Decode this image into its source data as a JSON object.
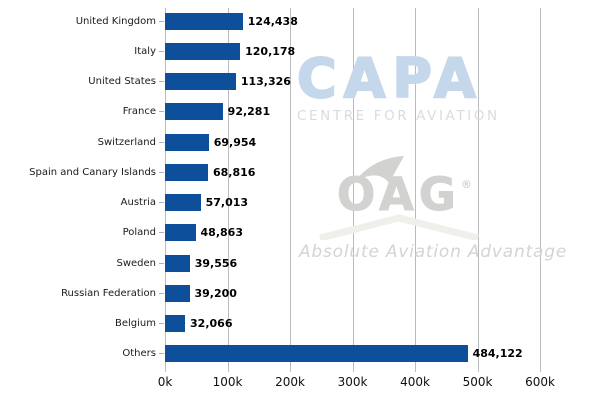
{
  "chart_data": {
    "type": "bar",
    "orientation": "horizontal",
    "categories": [
      "United Kingdom",
      "Italy",
      "United States",
      "France",
      "Switzerland",
      "Spain and Canary Islands",
      "Austria",
      "Poland",
      "Sweden",
      "Russian Federation",
      "Belgium",
      "Others"
    ],
    "values": [
      124438,
      120178,
      113326,
      92281,
      69954,
      68816,
      57013,
      48863,
      39556,
      39200,
      32066,
      484122
    ],
    "value_labels": [
      "124,438",
      "120,178",
      "113,326",
      "92,281",
      "69,954",
      "68,816",
      "57,013",
      "48,863",
      "39,556",
      "39,200",
      "32,066",
      "484,122"
    ],
    "title": "",
    "xlabel": "",
    "ylabel": "",
    "x_ticks": [
      "0k",
      "100k",
      "200k",
      "300k",
      "400k",
      "500k",
      "600k"
    ],
    "xlim": [
      0,
      600000
    ],
    "grid": "vertical",
    "legend": "none",
    "bar_color": "#0d4f9b",
    "gridline_color": "#b9bcbf"
  },
  "watermarks": {
    "capa": {
      "logo_text": "CAPA",
      "subtitle": "CENTRE FOR AVIATION",
      "logo_color": "#c5d7eb",
      "subtitle_color": "#d8dce1"
    },
    "oag": {
      "logo_text": "OAG",
      "registered_mark": "®",
      "tagline": "Absolute Aviation Advantage",
      "logo_color": "#d2d2d0",
      "tagline_color": "#d6d3d0"
    }
  }
}
